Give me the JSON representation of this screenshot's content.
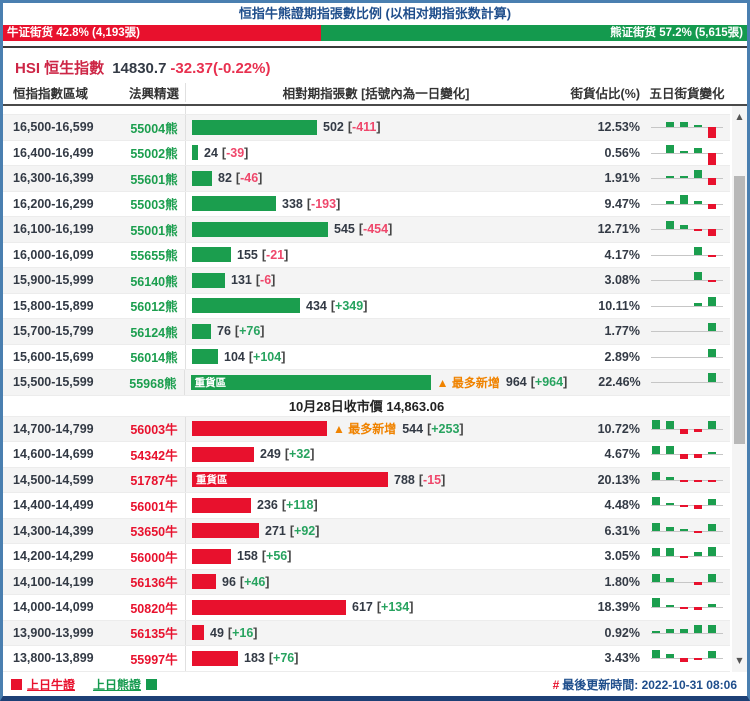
{
  "title": "恒指牛熊證期指張數比例 (以相对期指张数計算)",
  "ratio_bar": {
    "bull_label": "牛证街货 42.8% (4,193張)",
    "bull_value": 42.8,
    "bear_label": "熊证街货 57.2% (5,615張)",
    "bear_value": 57.2
  },
  "index": {
    "name": "HSI 恒生指數",
    "price": "14830.7",
    "change": "-32.37(-0.22%)"
  },
  "table": {
    "headers": {
      "range": "恒指指數區域",
      "code": "法興精選",
      "bar": "相對期指張數 [括號內為一日變化]",
      "percent": "街貨佔比(%)",
      "spark": "五日街貨變化"
    },
    "max_bar_value": 964,
    "heavy_label": "重貨區",
    "most_new_label": "▲ 最多新增",
    "close_note": "10月28日收市價 14,863.06",
    "partial_top_spark": [
      0,
      0,
      -2,
      0,
      -8
    ],
    "bear_rows": [
      {
        "range": "16,500-16,599",
        "code": "55004熊",
        "value": 502,
        "change": "-411",
        "percent": "12.53%",
        "spark": [
          0,
          5,
          5,
          2,
          -11
        ]
      },
      {
        "range": "16,400-16,499",
        "code": "55002熊",
        "value": 24,
        "change": "-39",
        "percent": "0.56%",
        "spark": [
          0,
          8,
          2,
          5,
          -12
        ]
      },
      {
        "range": "16,300-16,399",
        "code": "55601熊",
        "value": 82,
        "change": "-46",
        "percent": "1.91%",
        "spark": [
          0,
          2,
          2,
          8,
          -7
        ]
      },
      {
        "range": "16,200-16,299",
        "code": "55003熊",
        "value": 338,
        "change": "-193",
        "percent": "9.47%",
        "spark": [
          0,
          3,
          9,
          3,
          -5
        ]
      },
      {
        "range": "16,100-16,199",
        "code": "55001熊",
        "value": 545,
        "change": "-454",
        "percent": "12.71%",
        "spark": [
          0,
          8,
          4,
          -2,
          -7
        ]
      },
      {
        "range": "16,000-16,099",
        "code": "55655熊",
        "value": 155,
        "change": "-21",
        "percent": "4.17%",
        "spark": [
          0,
          0,
          0,
          8,
          -2
        ]
      },
      {
        "range": "15,900-15,999",
        "code": "56140熊",
        "value": 131,
        "change": "-6",
        "percent": "3.08%",
        "spark": [
          0,
          0,
          0,
          8,
          -2
        ]
      },
      {
        "range": "15,800-15,899",
        "code": "56012熊",
        "value": 434,
        "change": "+349",
        "percent": "10.11%",
        "spark": [
          0,
          0,
          0,
          3,
          9
        ]
      },
      {
        "range": "15,700-15,799",
        "code": "56124熊",
        "value": 76,
        "change": "+76",
        "percent": "1.77%",
        "spark": [
          0,
          0,
          0,
          0,
          8
        ]
      },
      {
        "range": "15,600-15,699",
        "code": "56014熊",
        "value": 104,
        "change": "+104",
        "percent": "2.89%",
        "spark": [
          0,
          0,
          0,
          0,
          8
        ]
      },
      {
        "range": "15,500-15,599",
        "code": "55968熊",
        "value": 964,
        "change": "+964",
        "percent": "22.46%",
        "spark": [
          0,
          0,
          0,
          0,
          9
        ],
        "heavy": true,
        "most_new": true
      }
    ],
    "bull_rows": [
      {
        "range": "14,700-14,799",
        "code": "56003牛",
        "value": 544,
        "change": "+253",
        "percent": "10.72%",
        "spark": [
          9,
          8,
          -5,
          -3,
          8
        ],
        "most_new": true
      },
      {
        "range": "14,600-14,699",
        "code": "54342牛",
        "value": 249,
        "change": "+32",
        "percent": "4.67%",
        "spark": [
          8,
          8,
          -5,
          -4,
          2
        ]
      },
      {
        "range": "14,500-14,599",
        "code": "51787牛",
        "value": 788,
        "change": "-15",
        "percent": "20.13%",
        "spark": [
          8,
          3,
          -2,
          -2,
          -2
        ],
        "heavy": true
      },
      {
        "range": "14,400-14,499",
        "code": "56001牛",
        "value": 236,
        "change": "+118",
        "percent": "4.48%",
        "spark": [
          8,
          2,
          -2,
          -4,
          6
        ]
      },
      {
        "range": "14,300-14,399",
        "code": "53650牛",
        "value": 271,
        "change": "+92",
        "percent": "6.31%",
        "spark": [
          8,
          4,
          2,
          -2,
          7
        ]
      },
      {
        "range": "14,200-14,299",
        "code": "56000牛",
        "value": 158,
        "change": "+56",
        "percent": "3.05%",
        "spark": [
          8,
          8,
          -2,
          4,
          9
        ]
      },
      {
        "range": "14,100-14,199",
        "code": "56136牛",
        "value": 96,
        "change": "+46",
        "percent": "1.80%",
        "spark": [
          8,
          4,
          0,
          -3,
          8
        ]
      },
      {
        "range": "14,000-14,099",
        "code": "50820牛",
        "value": 617,
        "change": "+134",
        "percent": "18.39%",
        "spark": [
          9,
          2,
          -2,
          -3,
          3
        ]
      },
      {
        "range": "13,900-13,999",
        "code": "56135牛",
        "value": 49,
        "change": "+16",
        "percent": "0.92%",
        "spark": [
          2,
          4,
          4,
          8,
          8
        ]
      },
      {
        "range": "13,800-13,899",
        "code": "55997牛",
        "value": 183,
        "change": "+76",
        "percent": "3.43%",
        "spark": [
          8,
          4,
          -4,
          -2,
          7
        ]
      }
    ]
  },
  "footer": {
    "legend_bull": "上日牛證",
    "legend_bear": "上日熊證",
    "update_prefix": "#",
    "update_text": "最後更新時間: 2022-10-31 08:06"
  },
  "colors": {
    "bull_red": "#e8112d",
    "bear_green": "#1b9e4e",
    "most_new_orange": "#f08300",
    "title_navy": "#1f4e8c",
    "negative_change": "#ef476b",
    "positive_change": "#27a35f",
    "border_blue": "#4a7fb0"
  }
}
